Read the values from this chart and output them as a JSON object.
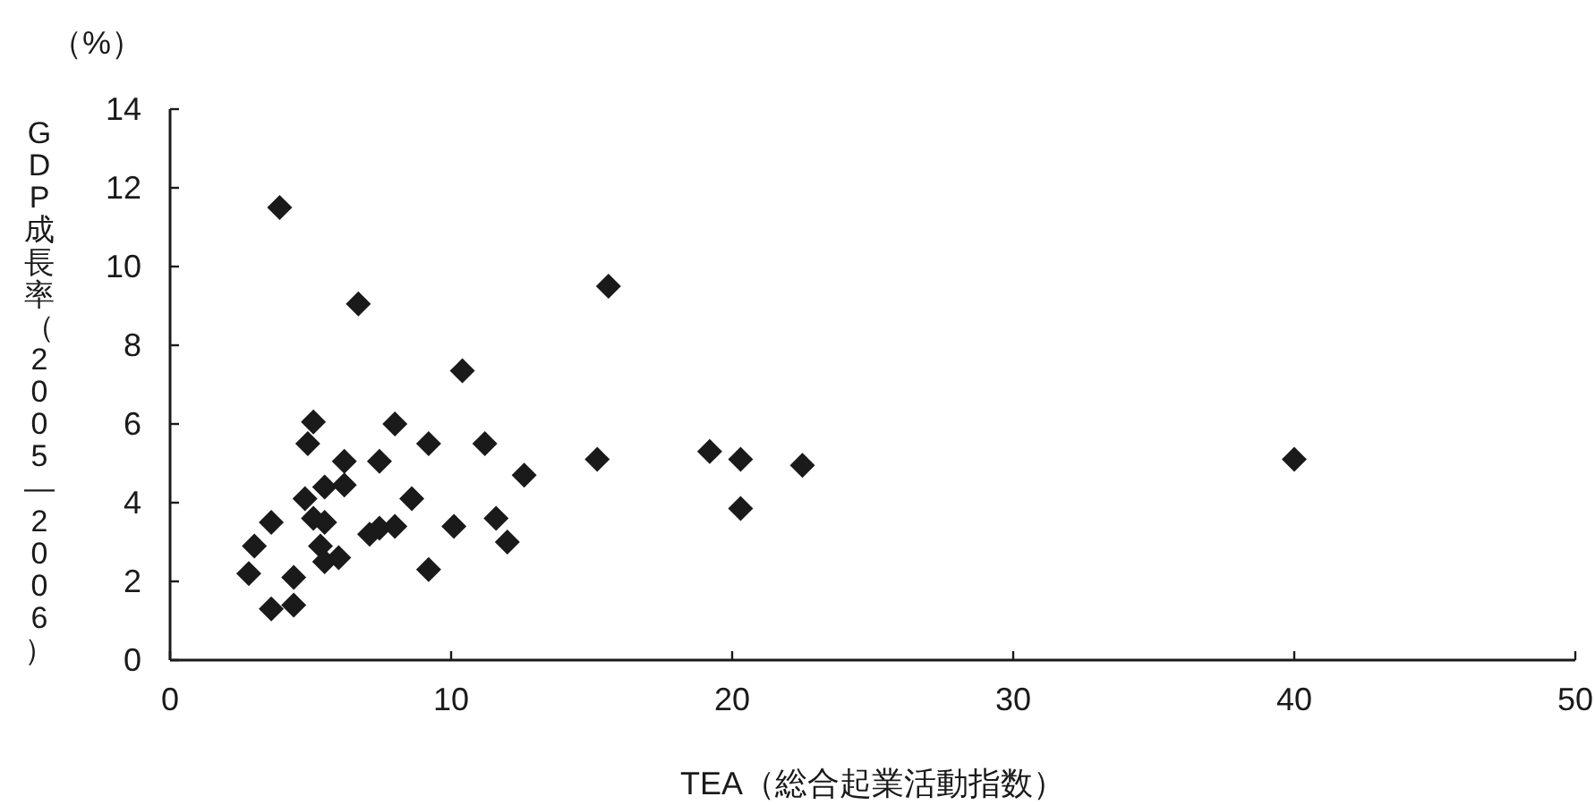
{
  "chart_data": {
    "type": "scatter",
    "xlabel": "TEA（総合起業活動指数）",
    "ylabel": "GDP成長率（2005—2006）",
    "annotations": [
      "（%）"
    ],
    "x": [
      2.8,
      3.0,
      3.6,
      3.6,
      3.9,
      4.4,
      4.4,
      4.8,
      4.9,
      5.1,
      5.1,
      5.5,
      5.5,
      5.35,
      5.5,
      6.0,
      6.7,
      6.2,
      6.2,
      7.45,
      8.0,
      7.1,
      7.45,
      8.0,
      8.6,
      9.2,
      9.2,
      10.1,
      10.4,
      11.2,
      11.6,
      12.0,
      12.6,
      15.2,
      15.6,
      19.2,
      20.3,
      20.3,
      22.5,
      40.0
    ],
    "series": [
      {
        "color": "#1a1a1a",
        "values": [
          2.2,
          2.9,
          3.5,
          1.3,
          11.5,
          2.1,
          1.4,
          4.1,
          5.5,
          6.05,
          3.6,
          4.4,
          3.5,
          2.9,
          2.5,
          2.6,
          9.05,
          5.05,
          4.45,
          5.05,
          6.0,
          3.2,
          3.35,
          3.4,
          4.1,
          5.5,
          2.3,
          3.4,
          7.35,
          5.5,
          3.6,
          3.0,
          4.7,
          5.1,
          9.5,
          5.3,
          5.1,
          3.85,
          4.95,
          5.1
        ]
      }
    ],
    "marker": "diamond",
    "xlim": [
      0,
      50
    ],
    "ylim": [
      0,
      14
    ],
    "xticks": [
      0,
      10,
      20,
      30,
      40,
      50
    ],
    "yticks": [
      0,
      2,
      4,
      6,
      8,
      10,
      12,
      14
    ],
    "grid": false
  }
}
